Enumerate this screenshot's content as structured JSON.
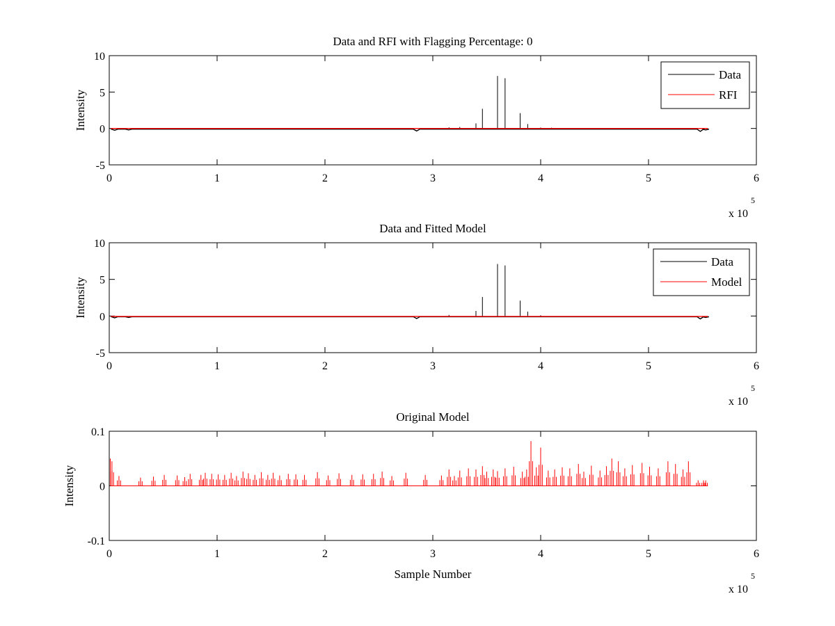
{
  "chart_data": [
    {
      "type": "line",
      "title": "Data and RFI with Flagging Percentage: 0",
      "xlabel": "",
      "ylabel": "Intensity",
      "xlim": [
        0,
        600000
      ],
      "ylim": [
        -5,
        10
      ],
      "x_ticks": [
        "0",
        "1",
        "2",
        "3",
        "4",
        "5",
        "6"
      ],
      "y_ticks": [
        "-5",
        "0",
        "5",
        "10"
      ],
      "x_multiplier": "x 10",
      "x_multiplier_exp": "5",
      "grid": false,
      "legend_position": "top-right",
      "series": [
        {
          "name": "Data",
          "color": "#000000",
          "baseline": -0.1,
          "spikes": [
            [
              340000,
              0.7
            ],
            [
              346000,
              2.7
            ],
            [
              360000,
              7.2
            ],
            [
              367000,
              6.9
            ],
            [
              381000,
              2.1
            ],
            [
              388000,
              0.6
            ],
            [
              315000,
              0.15
            ],
            [
              325000,
              0.2
            ],
            [
              400000,
              0.12
            ],
            [
              410000,
              0.1
            ]
          ],
          "dips": [
            [
              5000,
              -0.25
            ],
            [
              18000,
              -0.2
            ],
            [
              285000,
              -0.35
            ],
            [
              548000,
              -0.4
            ],
            [
              553000,
              -0.2
            ]
          ]
        },
        {
          "name": "RFI",
          "color": "#ff0000",
          "baseline": 0,
          "spikes": [],
          "dips": []
        }
      ],
      "x_end": 555000
    },
    {
      "type": "line",
      "title": "Data and Fitted Model",
      "xlabel": "",
      "ylabel": "Intensity",
      "xlim": [
        0,
        600000
      ],
      "ylim": [
        -5,
        10
      ],
      "x_ticks": [
        "0",
        "1",
        "2",
        "3",
        "4",
        "5",
        "6"
      ],
      "y_ticks": [
        "-5",
        "0",
        "5",
        "10"
      ],
      "x_multiplier": "x 10",
      "x_multiplier_exp": "5",
      "grid": false,
      "legend_position": "top-right",
      "series": [
        {
          "name": "Data",
          "color": "#000000",
          "baseline": -0.1,
          "spikes": [
            [
              340000,
              0.7
            ],
            [
              346000,
              2.6
            ],
            [
              360000,
              7.1
            ],
            [
              367000,
              6.9
            ],
            [
              381000,
              2.1
            ],
            [
              388000,
              0.6
            ],
            [
              315000,
              0.15
            ],
            [
              400000,
              0.1
            ]
          ],
          "dips": [
            [
              5000,
              -0.25
            ],
            [
              18000,
              -0.2
            ],
            [
              285000,
              -0.35
            ],
            [
              548000,
              -0.4
            ],
            [
              553000,
              -0.2
            ]
          ]
        },
        {
          "name": "Model",
          "color": "#ff0000",
          "baseline": -0.05,
          "spikes": [],
          "dips": []
        }
      ],
      "x_end": 555000
    },
    {
      "type": "line",
      "title": "Original Model",
      "xlabel": "Sample Number",
      "ylabel": "Intensity",
      "xlim": [
        0,
        600000
      ],
      "ylim": [
        -0.1,
        0.1
      ],
      "x_ticks": [
        "0",
        "1",
        "2",
        "3",
        "4",
        "5",
        "6"
      ],
      "y_ticks": [
        "-0.1",
        "0",
        "0.1"
      ],
      "x_multiplier": "x 10",
      "x_multiplier_exp": "5",
      "grid": false,
      "series": [
        {
          "color": "#ff0000",
          "baseline": 0,
          "spikes": [
            [
              1000,
              0.05
            ],
            [
              2500,
              0.045
            ],
            [
              9000,
              0.018
            ],
            [
              29000,
              0.015
            ],
            [
              41000,
              0.017
            ],
            [
              51000,
              0.02
            ],
            [
              63000,
              0.019
            ],
            [
              70000,
              0.016
            ],
            [
              75000,
              0.022
            ],
            [
              85000,
              0.02
            ],
            [
              89000,
              0.024
            ],
            [
              95000,
              0.022
            ],
            [
              101000,
              0.021
            ],
            [
              107000,
              0.02
            ],
            [
              113000,
              0.024
            ],
            [
              118000,
              0.018
            ],
            [
              124000,
              0.026
            ],
            [
              129000,
              0.023
            ],
            [
              135000,
              0.02
            ],
            [
              141000,
              0.025
            ],
            [
              147000,
              0.02
            ],
            [
              152000,
              0.024
            ],
            [
              158000,
              0.019
            ],
            [
              166000,
              0.022
            ],
            [
              173000,
              0.021
            ],
            [
              181000,
              0.02
            ],
            [
              193000,
              0.025
            ],
            [
              203000,
              0.019
            ],
            [
              213000,
              0.023
            ],
            [
              225000,
              0.02
            ],
            [
              235000,
              0.021
            ],
            [
              245000,
              0.022
            ],
            [
              253000,
              0.026
            ],
            [
              262000,
              0.018
            ],
            [
              275000,
              0.024
            ],
            [
              293000,
              0.02
            ],
            [
              308000,
              0.019
            ],
            [
              315000,
              0.03
            ],
            [
              320000,
              0.018
            ],
            [
              325000,
              0.028
            ],
            [
              333000,
              0.032
            ],
            [
              340000,
              0.03
            ],
            [
              346000,
              0.036
            ],
            [
              350000,
              0.026
            ],
            [
              356000,
              0.03
            ],
            [
              360000,
              0.027
            ],
            [
              367000,
              0.032
            ],
            [
              375000,
              0.035
            ],
            [
              383000,
              0.026
            ],
            [
              387000,
              0.03
            ],
            [
              391000,
              0.082
            ],
            [
              396000,
              0.034
            ],
            [
              400000,
              0.07
            ],
            [
              407000,
              0.028
            ],
            [
              413000,
              0.03
            ],
            [
              420000,
              0.034
            ],
            [
              427000,
              0.032
            ],
            [
              435000,
              0.04
            ],
            [
              440000,
              0.026
            ],
            [
              447000,
              0.037
            ],
            [
              455000,
              0.028
            ],
            [
              461000,
              0.036
            ],
            [
              466000,
              0.05
            ],
            [
              472000,
              0.045
            ],
            [
              478000,
              0.032
            ],
            [
              485000,
              0.038
            ],
            [
              494000,
              0.042
            ],
            [
              501000,
              0.035
            ],
            [
              509000,
              0.032
            ],
            [
              518000,
              0.045
            ],
            [
              525000,
              0.04
            ],
            [
              532000,
              0.03
            ],
            [
              537000,
              0.045
            ],
            [
              546000,
              0.01
            ],
            [
              551000,
              0.01
            ],
            [
              553000,
              0.01
            ]
          ]
        }
      ],
      "x_end": 555000
    }
  ]
}
